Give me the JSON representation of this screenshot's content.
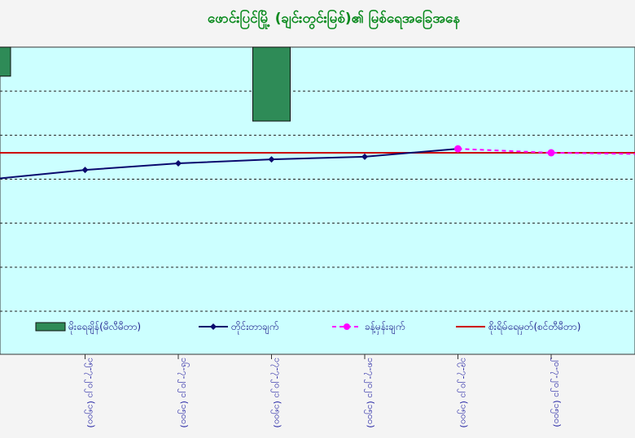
{
  "chart_data": {
    "type": "bar",
    "title": "ဖောင်းပြင်မြို့ (ချင်းတွင်းမြစ်)၏ မြစ်ရေအခြေအနေ",
    "xlabel": "",
    "ylabel": "",
    "categories": [
      "(၁၅၀၀)",
      "၁၅-၇-၂၀၂၁ (၁၅၀၀)",
      "၁၆-၇-၂၀၂၁ (၁၅၀၀)",
      "၁၇-၇-၂၀၂၁ (၁၅၀၀)",
      "၁၈-၇-၂၀၂၁ (၁၅၀၀)",
      "၁၉-၇-၂၀၂၁ (၁၅၀၀)",
      "၂၀-၇-၂၀၂၁ (၁၅၀၀)",
      ""
    ],
    "ylim": [
      0,
      100
    ],
    "grid": true,
    "legend_placement": "bottom",
    "series": [
      {
        "name": "မိုးရေချိန်(မီလီမီတာ)",
        "type": "bar",
        "color": "#2e8b57",
        "values": [
          11,
          0,
          0,
          28,
          0,
          0,
          0,
          0
        ]
      },
      {
        "name": "တိုင်းတာချက်",
        "type": "line",
        "color": "#0a0a6e",
        "values": [
          50,
          53.5,
          56,
          57.5,
          58.5,
          61.5,
          null,
          null
        ]
      },
      {
        "name": "ခန့်မှန်းချက်",
        "type": "line-dashed",
        "color": "#ff00ff",
        "values": [
          null,
          null,
          null,
          null,
          null,
          61.5,
          60,
          59.5
        ]
      },
      {
        "name": "စိုးရိမ်ရေမှတ်(စင်တီမီတာ)",
        "type": "hline",
        "color": "#cc0000",
        "values": [
          60,
          60,
          60,
          60,
          60,
          60,
          60,
          60
        ]
      }
    ]
  }
}
